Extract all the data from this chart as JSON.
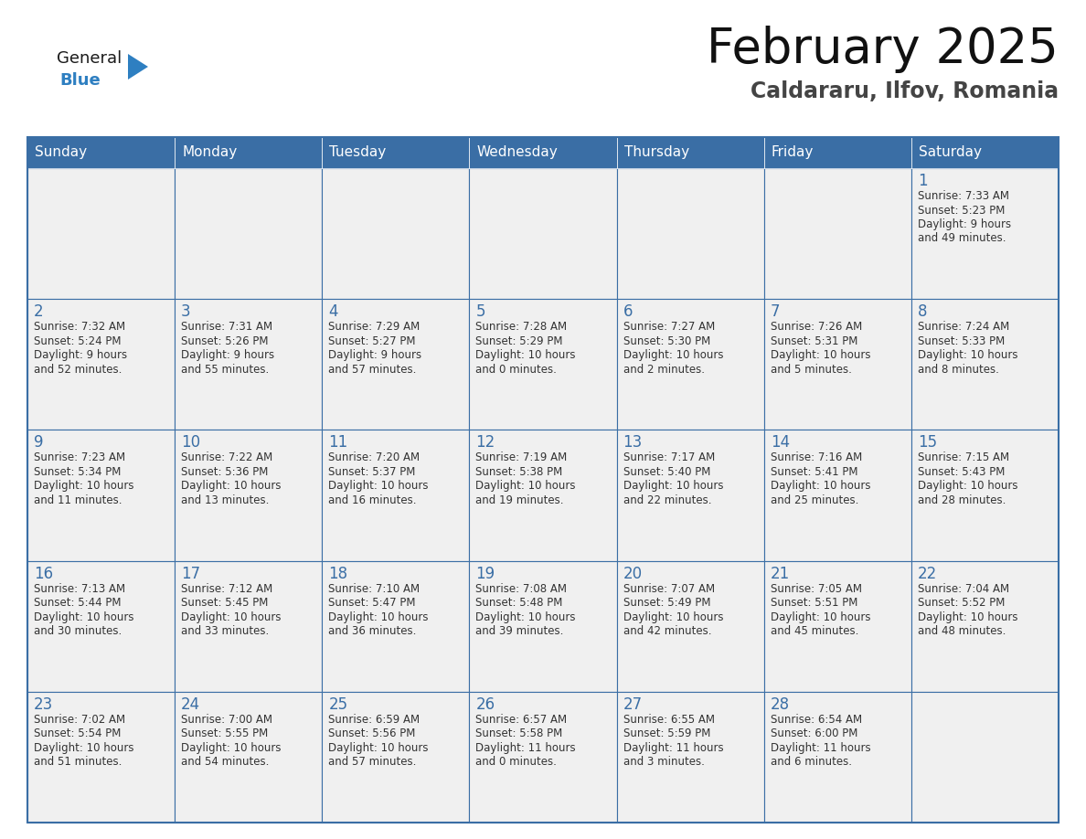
{
  "title": "February 2025",
  "subtitle": "Caldararu, Ilfov, Romania",
  "header_color": "#3a6ea5",
  "header_text_color": "#ffffff",
  "cell_bg": "#f0f0f0",
  "day_number_color": "#3a6ea5",
  "info_text_color": "#333333",
  "border_color": "#3a6ea5",
  "days_of_week": [
    "Sunday",
    "Monday",
    "Tuesday",
    "Wednesday",
    "Thursday",
    "Friday",
    "Saturday"
  ],
  "weeks": [
    [
      {
        "day": "",
        "info": ""
      },
      {
        "day": "",
        "info": ""
      },
      {
        "day": "",
        "info": ""
      },
      {
        "day": "",
        "info": ""
      },
      {
        "day": "",
        "info": ""
      },
      {
        "day": "",
        "info": ""
      },
      {
        "day": "1",
        "info": "Sunrise: 7:33 AM\nSunset: 5:23 PM\nDaylight: 9 hours\nand 49 minutes."
      }
    ],
    [
      {
        "day": "2",
        "info": "Sunrise: 7:32 AM\nSunset: 5:24 PM\nDaylight: 9 hours\nand 52 minutes."
      },
      {
        "day": "3",
        "info": "Sunrise: 7:31 AM\nSunset: 5:26 PM\nDaylight: 9 hours\nand 55 minutes."
      },
      {
        "day": "4",
        "info": "Sunrise: 7:29 AM\nSunset: 5:27 PM\nDaylight: 9 hours\nand 57 minutes."
      },
      {
        "day": "5",
        "info": "Sunrise: 7:28 AM\nSunset: 5:29 PM\nDaylight: 10 hours\nand 0 minutes."
      },
      {
        "day": "6",
        "info": "Sunrise: 7:27 AM\nSunset: 5:30 PM\nDaylight: 10 hours\nand 2 minutes."
      },
      {
        "day": "7",
        "info": "Sunrise: 7:26 AM\nSunset: 5:31 PM\nDaylight: 10 hours\nand 5 minutes."
      },
      {
        "day": "8",
        "info": "Sunrise: 7:24 AM\nSunset: 5:33 PM\nDaylight: 10 hours\nand 8 minutes."
      }
    ],
    [
      {
        "day": "9",
        "info": "Sunrise: 7:23 AM\nSunset: 5:34 PM\nDaylight: 10 hours\nand 11 minutes."
      },
      {
        "day": "10",
        "info": "Sunrise: 7:22 AM\nSunset: 5:36 PM\nDaylight: 10 hours\nand 13 minutes."
      },
      {
        "day": "11",
        "info": "Sunrise: 7:20 AM\nSunset: 5:37 PM\nDaylight: 10 hours\nand 16 minutes."
      },
      {
        "day": "12",
        "info": "Sunrise: 7:19 AM\nSunset: 5:38 PM\nDaylight: 10 hours\nand 19 minutes."
      },
      {
        "day": "13",
        "info": "Sunrise: 7:17 AM\nSunset: 5:40 PM\nDaylight: 10 hours\nand 22 minutes."
      },
      {
        "day": "14",
        "info": "Sunrise: 7:16 AM\nSunset: 5:41 PM\nDaylight: 10 hours\nand 25 minutes."
      },
      {
        "day": "15",
        "info": "Sunrise: 7:15 AM\nSunset: 5:43 PM\nDaylight: 10 hours\nand 28 minutes."
      }
    ],
    [
      {
        "day": "16",
        "info": "Sunrise: 7:13 AM\nSunset: 5:44 PM\nDaylight: 10 hours\nand 30 minutes."
      },
      {
        "day": "17",
        "info": "Sunrise: 7:12 AM\nSunset: 5:45 PM\nDaylight: 10 hours\nand 33 minutes."
      },
      {
        "day": "18",
        "info": "Sunrise: 7:10 AM\nSunset: 5:47 PM\nDaylight: 10 hours\nand 36 minutes."
      },
      {
        "day": "19",
        "info": "Sunrise: 7:08 AM\nSunset: 5:48 PM\nDaylight: 10 hours\nand 39 minutes."
      },
      {
        "day": "20",
        "info": "Sunrise: 7:07 AM\nSunset: 5:49 PM\nDaylight: 10 hours\nand 42 minutes."
      },
      {
        "day": "21",
        "info": "Sunrise: 7:05 AM\nSunset: 5:51 PM\nDaylight: 10 hours\nand 45 minutes."
      },
      {
        "day": "22",
        "info": "Sunrise: 7:04 AM\nSunset: 5:52 PM\nDaylight: 10 hours\nand 48 minutes."
      }
    ],
    [
      {
        "day": "23",
        "info": "Sunrise: 7:02 AM\nSunset: 5:54 PM\nDaylight: 10 hours\nand 51 minutes."
      },
      {
        "day": "24",
        "info": "Sunrise: 7:00 AM\nSunset: 5:55 PM\nDaylight: 10 hours\nand 54 minutes."
      },
      {
        "day": "25",
        "info": "Sunrise: 6:59 AM\nSunset: 5:56 PM\nDaylight: 10 hours\nand 57 minutes."
      },
      {
        "day": "26",
        "info": "Sunrise: 6:57 AM\nSunset: 5:58 PM\nDaylight: 11 hours\nand 0 minutes."
      },
      {
        "day": "27",
        "info": "Sunrise: 6:55 AM\nSunset: 5:59 PM\nDaylight: 11 hours\nand 3 minutes."
      },
      {
        "day": "28",
        "info": "Sunrise: 6:54 AM\nSunset: 6:00 PM\nDaylight: 11 hours\nand 6 minutes."
      },
      {
        "day": "",
        "info": ""
      }
    ]
  ],
  "logo_text_general": "General",
  "logo_text_blue": "Blue",
  "logo_color_general": "#1a1a1a",
  "logo_color_blue": "#2e7fc1",
  "logo_triangle_color": "#2e7fc1"
}
